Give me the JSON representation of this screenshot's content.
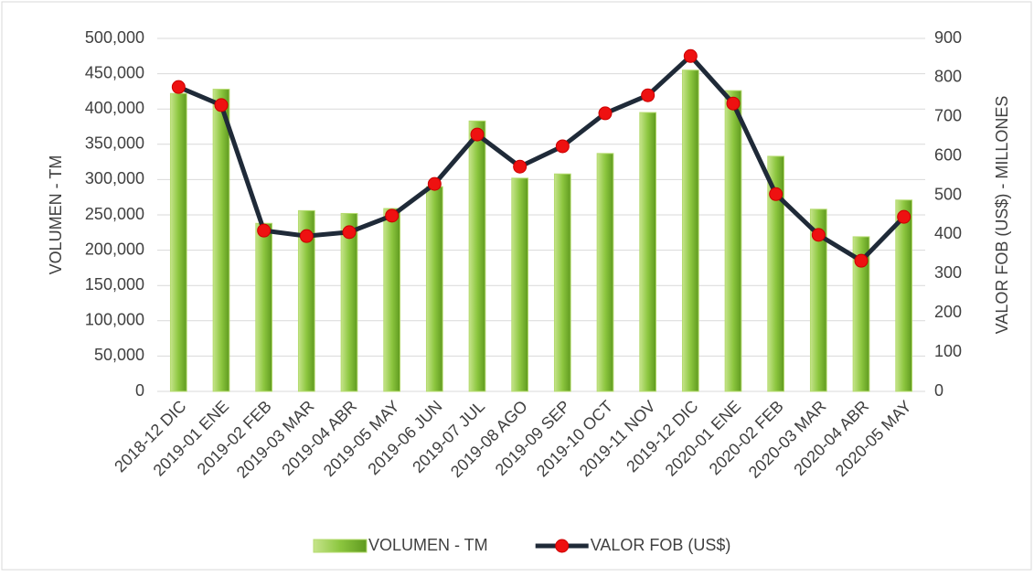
{
  "chart_data": {
    "type": "bar_line",
    "categories": [
      "2018-12 DIC",
      "2019-01 ENE",
      "2019-02 FEB",
      "2019-03 MAR",
      "2019-04 ABR",
      "2019-05 MAY",
      "2019-06 JUN",
      "2019-07 JUL",
      "2019-08 AGO",
      "2019-09 SEP",
      "2019-10 OCT",
      "2019-11 NOV",
      "2019-12 DIC",
      "2020-01 ENE",
      "2020-02 FEB",
      "2020-03 MAR",
      "2020-04 ABR",
      "2020-05 MAY"
    ],
    "series": [
      {
        "name": "VOLUMEN - TM",
        "type": "bar",
        "color": "#7cb82f",
        "values": [
          422000,
          428000,
          238000,
          256000,
          252000,
          259000,
          290000,
          383000,
          302000,
          308000,
          337000,
          395000,
          455000,
          426000,
          333000,
          258000,
          219000,
          271000
        ]
      },
      {
        "name": "VALOR FOB (US$)",
        "type": "line",
        "axis": "y2",
        "color": "#1f2a38",
        "marker_color": "#ee1111",
        "values": [
          776,
          730,
          410,
          396,
          406,
          448,
          529,
          655,
          573,
          625,
          709,
          755,
          855,
          734,
          503,
          399,
          333,
          445
        ]
      }
    ],
    "ylabel": "VOLUMEN - TM",
    "y2label": "VALOR FOB (US$) -  MILLONES",
    "ylim": [
      0,
      500000
    ],
    "yticks": [
      0,
      {
        "value": 50000,
        "label": "50,000"
      },
      {
        "value": 100000,
        "label": "100,000"
      },
      {
        "value": 150000,
        "label": "150,000"
      },
      {
        "value": 200000,
        "label": "200,000"
      },
      {
        "value": 250000,
        "label": "250,000"
      },
      {
        "value": 300000,
        "label": "300,000"
      },
      {
        "value": 350000,
        "label": "350,000"
      },
      {
        "value": 400000,
        "label": "400,000"
      },
      {
        "value": 450000,
        "label": "450,000"
      },
      {
        "value": 500000,
        "label": "500,000"
      }
    ],
    "y2lim": [
      0,
      900
    ],
    "y2ticks": [
      0,
      100,
      200,
      300,
      400,
      500,
      600,
      700,
      800,
      900
    ],
    "grid": true,
    "legend": "bottom"
  }
}
